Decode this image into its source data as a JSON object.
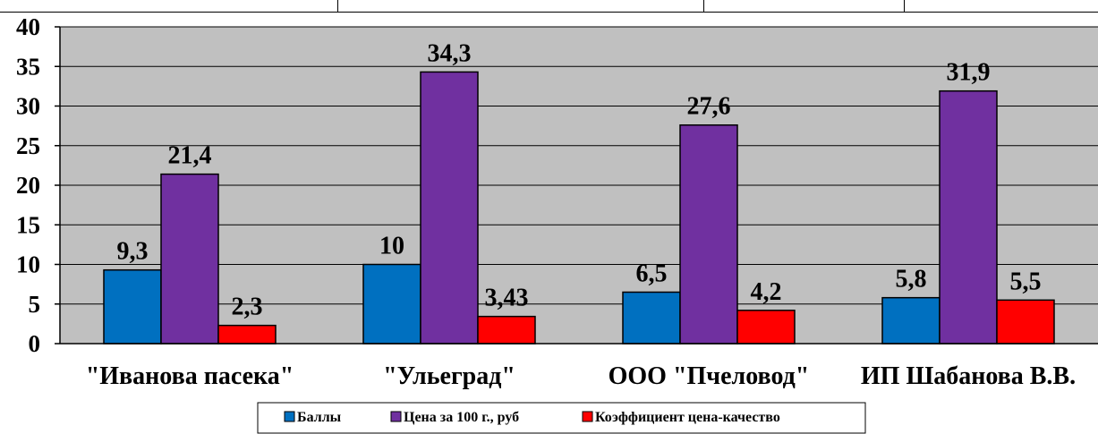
{
  "chart_data": {
    "type": "bar",
    "categories": [
      "\"Иванова пасека\"",
      "\"Ульеград\"",
      "ООО \"Пчеловод\"",
      "ИП Шабанова В.В."
    ],
    "series": [
      {
        "name": "Баллы",
        "values": [
          9.3,
          10,
          6.5,
          5.8
        ],
        "labels": [
          "9,3",
          "10",
          "6,5",
          "5,8"
        ],
        "color": "#0070C0"
      },
      {
        "name": "Цена за 100 г., руб",
        "values": [
          21.4,
          34.3,
          27.6,
          31.9
        ],
        "labels": [
          "21,4",
          "34,3",
          "27,6",
          "31,9"
        ],
        "color": "#7030A0"
      },
      {
        "name": "Коэффициент цена-качество",
        "values": [
          2.3,
          3.43,
          4.2,
          5.5
        ],
        "labels": [
          "2,3",
          "3,43",
          "4,2",
          "5,5"
        ],
        "color": "#FF0000"
      }
    ],
    "ylim": [
      0,
      40
    ],
    "yticks": [
      "0",
      "5",
      "10",
      "15",
      "20",
      "25",
      "30",
      "35",
      "40"
    ],
    "grid": true,
    "legend_position": "bottom",
    "plot_background": "#C0C0C0"
  }
}
